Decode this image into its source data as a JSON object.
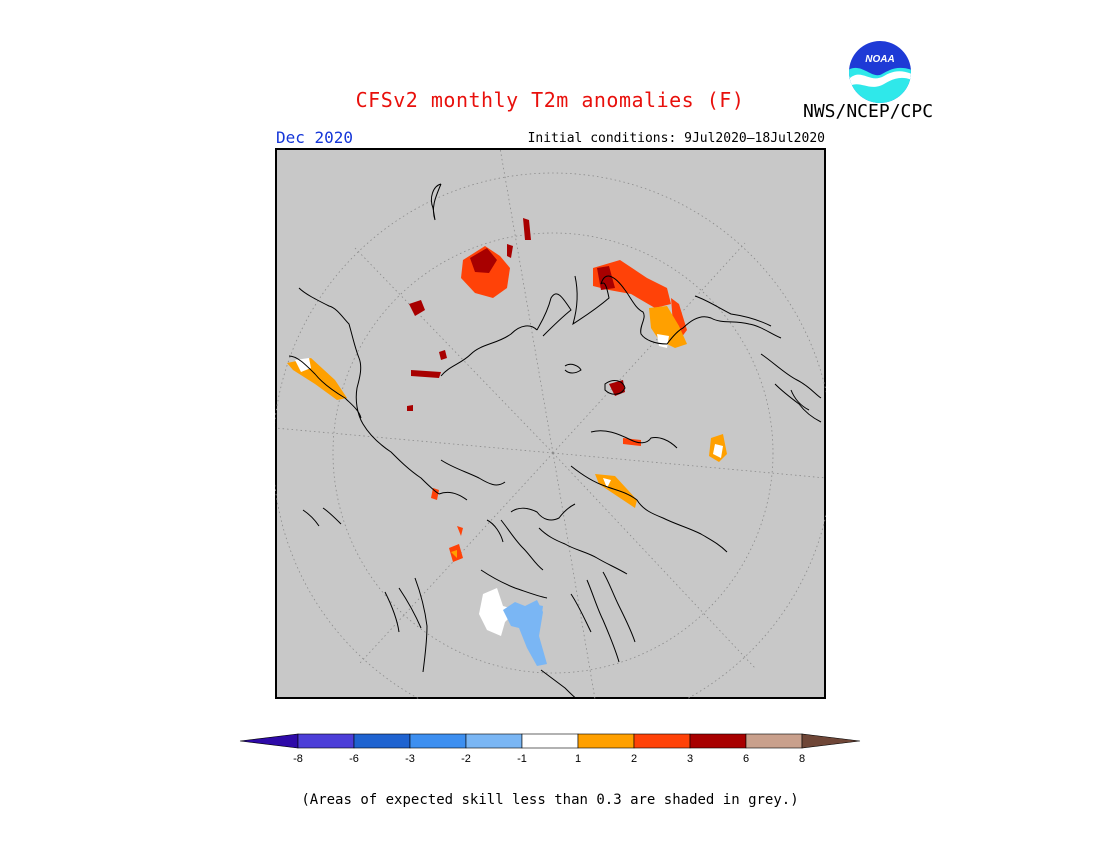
{
  "title": "CFSv2 monthly T2m anomalies (F)",
  "agency": "NWS/NCEP/CPC",
  "logo": {
    "text": "NOAA",
    "colors": {
      "top": "#1e3ad6",
      "bottom": "#2fe8ea",
      "bird": "#ffffff"
    }
  },
  "month": "Dec 2020",
  "initial_conditions": "Initial conditions: 9Jul2020–18Jul2020",
  "skill_note": "(Areas of expected skill less than 0.3 are shaded in grey.)",
  "map": {
    "projection": "polar stereographic (north pole)",
    "background": "#c8c8c8",
    "coastline_color": "#000000",
    "graticule_color": "#8a8a8a"
  },
  "legend": {
    "colors": [
      "#2e0aa8",
      "#4c3ed8",
      "#1f63d0",
      "#3d8ff0",
      "#7ab6f4",
      "#ffffff",
      "#ffa000",
      "#ff4208",
      "#a80000",
      "#c9a08c",
      "#6f4637"
    ],
    "labels": [
      "-8",
      "-6",
      "-3",
      "-2",
      "-1",
      "1",
      "2",
      "3",
      "6",
      "8"
    ]
  },
  "colors": {
    "title": "#e8100c",
    "month": "#1436d8"
  }
}
